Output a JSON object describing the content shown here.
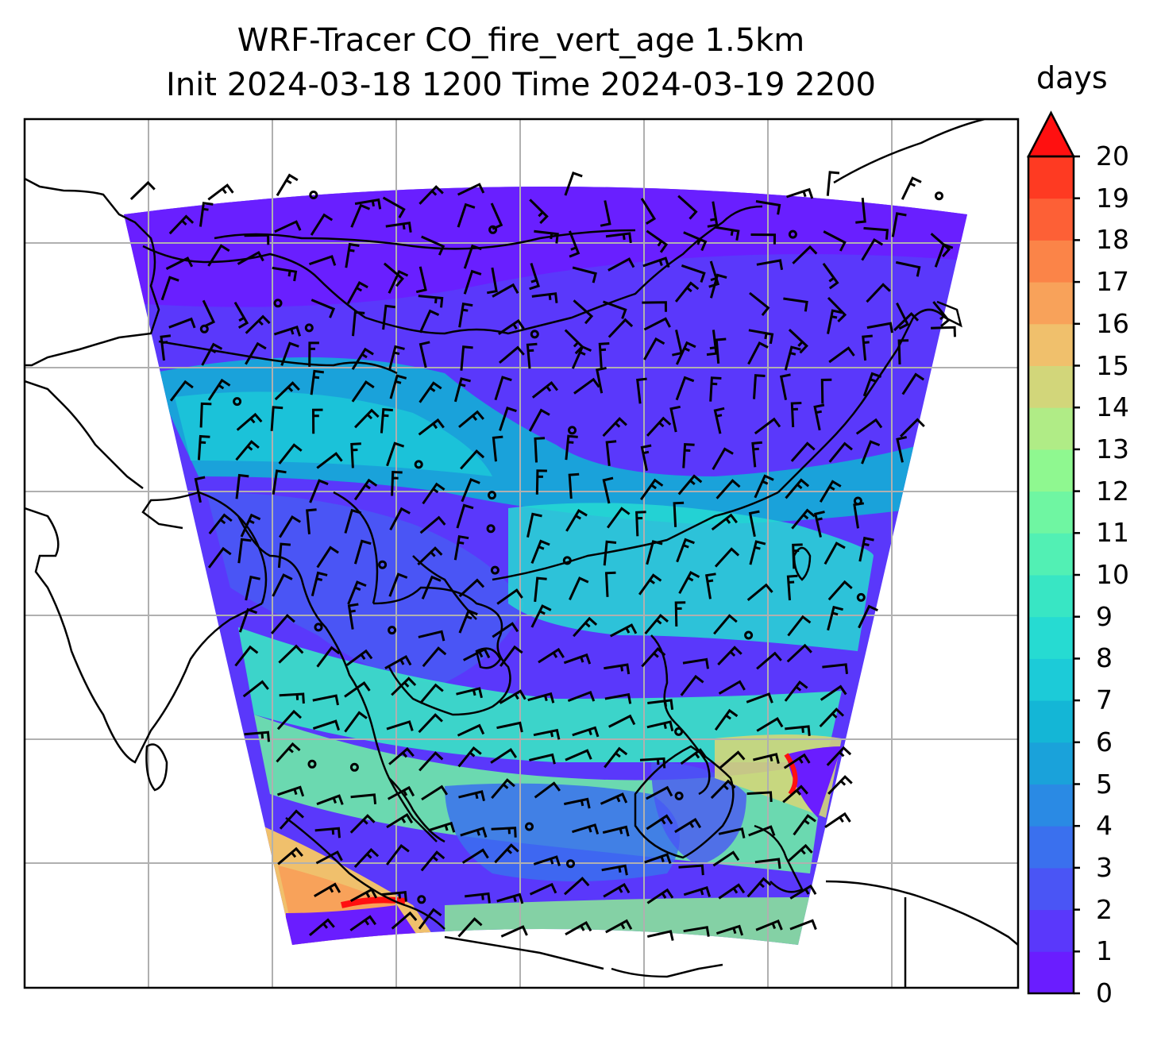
{
  "title": "WRF-Tracer CO_fire_vert_age 1.5km",
  "subtitle": "Init 2024-03-18 1200 Time 2024-03-19 2200",
  "colorbar": {
    "label": "days",
    "min": 0,
    "max": 20,
    "extend": "max",
    "ticks": [
      "0",
      "1",
      "2",
      "3",
      "4",
      "5",
      "6",
      "7",
      "8",
      "9",
      "10",
      "11",
      "12",
      "13",
      "14",
      "15",
      "16",
      "17",
      "18",
      "19",
      "20"
    ],
    "colors": [
      "#6a1dff",
      "#5a38fb",
      "#4a55f5",
      "#3a70ee",
      "#2a8ae4",
      "#1aa2da",
      "#14b6d6",
      "#1ccbd8",
      "#26dbd2",
      "#38e6c4",
      "#52f0b4",
      "#6ff6a2",
      "#8ff890",
      "#b0ec86",
      "#d2d67a",
      "#f0c06c",
      "#f8a25a",
      "#fb8448",
      "#fd6036",
      "#fe3a22",
      "#ff1010"
    ],
    "extend_color": "#ff1010"
  },
  "map": {
    "type": "wind-barb-overlay-map",
    "field": "CO_fire_vert_age",
    "units": "days",
    "gridlines": true,
    "features": [
      "coastlines",
      "country-borders",
      "wind-barbs",
      "calm-circles"
    ]
  }
}
